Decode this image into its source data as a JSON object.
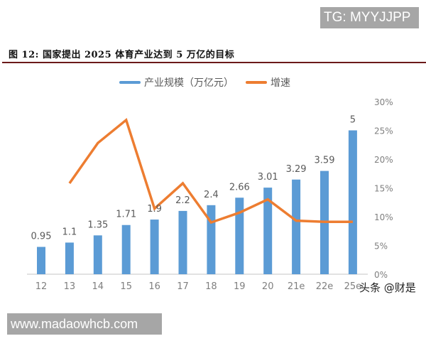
{
  "watermarks": {
    "top_right": "TG: MYYJJPP",
    "bottom_left": "www.madaowhcb.com",
    "source": "头条 @财是"
  },
  "figure": {
    "title": "图 12: 国家提出 2025 体育产业达到 5 万亿的目标"
  },
  "legend": {
    "bar_label": "产业规模（万亿元）",
    "line_label": "增速"
  },
  "colors": {
    "bar": "#5b9bd5",
    "line": "#ed7d31",
    "axis_text": "#7f7f7f",
    "title_rule": "#6b1a1a"
  },
  "chart_data": {
    "type": "bar+line",
    "title": "图 12: 国家提出 2025 体育产业达到 5 万亿的目标",
    "categories": [
      "12",
      "13",
      "14",
      "15",
      "16",
      "17",
      "18",
      "19",
      "20",
      "21e",
      "22e",
      "25e"
    ],
    "series": [
      {
        "name": "产业规模（万亿元）",
        "type": "bar",
        "axis": "left",
        "values": [
          0.95,
          1.1,
          1.35,
          1.71,
          1.9,
          2.2,
          2.4,
          2.66,
          3.01,
          3.29,
          3.59,
          5
        ],
        "labels": [
          "0.95",
          "1.1",
          "1.35",
          "1.71",
          "1.9",
          "2.2",
          "2.4",
          "2.66",
          "3.01",
          "3.29",
          "3.59",
          "5"
        ]
      },
      {
        "name": "增速",
        "type": "line",
        "axis": "right",
        "values": [
          null,
          15.8,
          22.8,
          26.8,
          11.4,
          15.8,
          9.0,
          10.7,
          13.0,
          9.3,
          9.1,
          9.1
        ]
      }
    ],
    "y_left_range": [
      0,
      6
    ],
    "y_right_range": [
      0,
      30
    ],
    "y_right_ticks": [
      "0%",
      "5%",
      "10%",
      "15%",
      "20%",
      "25%",
      "30%"
    ],
    "xlabel": "",
    "ylabel": "",
    "grid": false,
    "legend_position": "top"
  }
}
